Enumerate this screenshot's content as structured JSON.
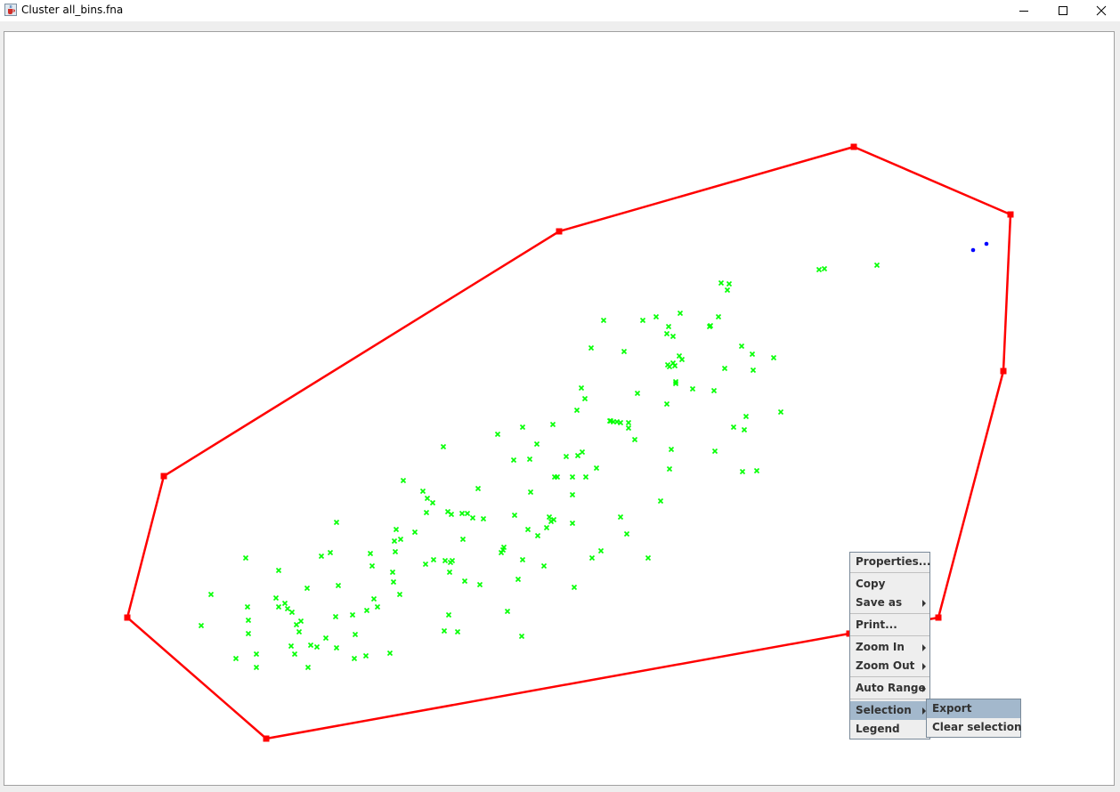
{
  "window": {
    "title": "Cluster all_bins.fna"
  },
  "icons": {
    "app": "java-cup-icon",
    "minimize": "minimize-icon",
    "maximize": "maximize-icon",
    "close": "close-icon"
  },
  "colors": {
    "polygon": "#ff0000",
    "green_points": "#00ff00",
    "blue_points": "#0000ff",
    "menu_highlight": "#a3b8cc"
  },
  "context_menu": {
    "properties": "Properties...",
    "copy": "Copy",
    "save_as": "Save as",
    "print": "Print...",
    "zoom_in": "Zoom In",
    "zoom_out": "Zoom Out",
    "auto_range": "Auto Range",
    "selection": "Selection",
    "legend": "Legend"
  },
  "selection_submenu": {
    "export": "Export",
    "clear_selection": "Clear selection"
  },
  "chart_data": {
    "type": "scatter",
    "title": "",
    "xlabel": "",
    "ylabel": "",
    "grid": false,
    "series": [
      {
        "marker": "x",
        "color": "#00ff00",
        "x": [
          226,
          237,
          265,
          276,
          278,
          279,
          279,
          288,
          288,
          310,
          313,
          313,
          320,
          323,
          327,
          328,
          331,
          333,
          336,
          338,
          345,
          346,
          349,
          356,
          361,
          366,
          371,
          377,
          378,
          378,
          380,
          396,
          398,
          399,
          411,
          412,
          416,
          418,
          420,
          424,
          438,
          441,
          442,
          443,
          444,
          445,
          449,
          450,
          453,
          466,
          475,
          478,
          479,
          480,
          486,
          487,
          498,
          499,
          500,
          503,
          504,
          505,
          506,
          507,
          508,
          514,
          519,
          520,
          522,
          525,
          531,
          537,
          539,
          543,
          559,
          563,
          565,
          566,
          570,
          577,
          578,
          582,
          586,
          587,
          587,
          593,
          595,
          596,
          603,
          604,
          611,
          614,
          617,
          619,
          621,
          622,
          623,
          626,
          636,
          643,
          643,
          643,
          645,
          648,
          649,
          653,
          654,
          657,
          658,
          664,
          665,
          670,
          675,
          678,
          685,
          686,
          689,
          693,
          697,
          697,
          701,
          704,
          706,
          706,
          713,
          716,
          722,
          728,
          737,
          742,
          749,
          749,
          750,
          751,
          752,
          752,
          754,
          756,
          756,
          758,
          759,
          759,
          763,
          764,
          766,
          778,
          797,
          798,
          802,
          803,
          807,
          810,
          814,
          817,
          819,
          824,
          833,
          834,
          836,
          838,
          845,
          846,
          850,
          869,
          877,
          920,
          926,
          985
        ],
        "y": [
          703,
          668,
          740,
          627,
          682,
          697,
          712,
          735,
          750,
          672,
          682,
          641,
          678,
          684,
          726,
          688,
          735,
          702,
          710,
          698,
          661,
          750,
          725,
          727,
          625,
          717,
          621,
          693,
          587,
          728,
          658,
          691,
          740,
          713,
          737,
          686,
          622,
          636,
          673,
          682,
          734,
          643,
          654,
          608,
          620,
          595,
          668,
          606,
          540,
          598,
          552,
          634,
          576,
          560,
          565,
          629,
          502,
          709,
          630,
          575,
          691,
          643,
          632,
          578,
          630,
          710,
          577,
          606,
          653,
          577,
          582,
          549,
          657,
          583,
          488,
          621,
          618,
          615,
          687,
          517,
          579,
          651,
          715,
          629,
          480,
          595,
          516,
          553,
          499,
          602,
          636,
          593,
          581,
          586,
          477,
          584,
          536,
          536,
          513,
          536,
          588,
          556,
          660,
          461,
          512,
          436,
          508,
          448,
          536,
          391,
          627,
          526,
          619,
          360,
          473,
          473,
          474,
          474,
          475,
          581,
          395,
          600,
          475,
          481,
          494,
          442,
          360,
          627,
          356,
          563,
          375,
          454,
          410,
          367,
          412,
          527,
          505,
          408,
          378,
          411,
          431,
          429,
          400,
          352,
          404,
          437,
          367,
          366,
          439,
          507,
          356,
          318,
          414,
          326,
          319,
          480,
          389,
          530,
          483,
          468,
          398,
          416,
          529,
          402,
          463,
          303,
          302,
          298
        ]
      },
      {
        "marker": "dot",
        "color": "#0000ff",
        "x": [
          1093,
          1108
        ],
        "y": [
          281,
          274
        ]
      }
    ],
    "selection_polygon": {
      "color": "#ff0000",
      "vertices_x": [
        959,
        1135,
        1127,
        1054,
        954,
        299,
        143,
        184,
        628
      ],
      "vertices_y": [
        165,
        241,
        417,
        694,
        712,
        830,
        694,
        535,
        260
      ]
    }
  }
}
